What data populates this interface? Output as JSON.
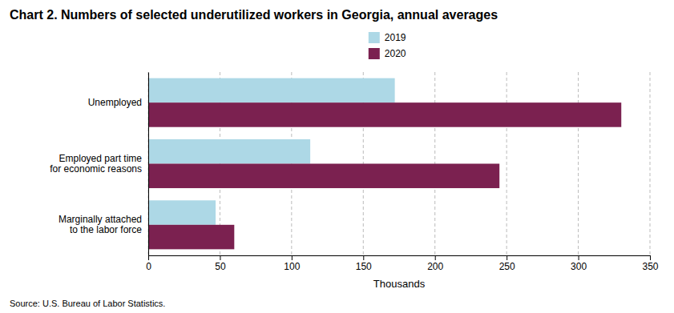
{
  "chart_data": {
    "type": "bar",
    "orientation": "horizontal",
    "title": "Chart 2. Numbers of selected underutilized workers in Georgia, annual averages",
    "categories": [
      "Marginally attached\nto the labor force",
      "Employed part time\nfor economic reasons",
      "Unemployed"
    ],
    "series": [
      {
        "name": "2019",
        "color": "#add8e6",
        "values": [
          47,
          113,
          172
        ]
      },
      {
        "name": "2020",
        "color": "#7b2150",
        "values": [
          60,
          245,
          330
        ]
      }
    ],
    "x_label": "Thousands",
    "xlim": [
      0,
      350
    ],
    "xticks": [
      0,
      50,
      100,
      150,
      200,
      250,
      300,
      350
    ],
    "grid": true,
    "legend": "top",
    "source": "Source: U.S. Bureau of Labor Statistics."
  }
}
